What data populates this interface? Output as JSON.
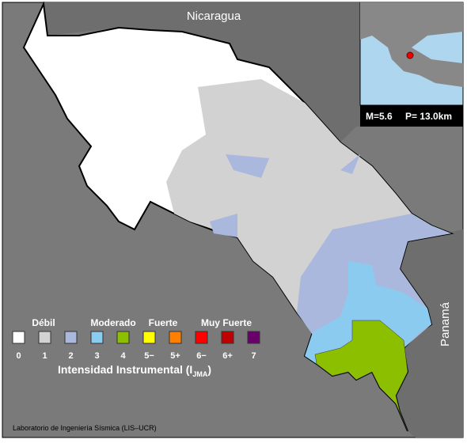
{
  "map": {
    "labels": {
      "north": "Nicaragua",
      "southeast": "Panamá"
    },
    "inset": {
      "magnitude": "M=5.6",
      "depth": "P= 13.0km"
    },
    "legend": {
      "groups": [
        "Débil",
        "Moderado",
        "Fuerte",
        "Muy Fuerte"
      ],
      "items": [
        {
          "label": "0",
          "color": "#ffffff"
        },
        {
          "label": "1",
          "color": "#d2d2d2"
        },
        {
          "label": "2",
          "color": "#a9b8dc"
        },
        {
          "label": "3",
          "color": "#8ccbf0"
        },
        {
          "label": "4",
          "color": "#8bbf00"
        },
        {
          "label": "5−",
          "color": "#ffff00"
        },
        {
          "label": "5+",
          "color": "#ff8000"
        },
        {
          "label": "6−",
          "color": "#ff0000"
        },
        {
          "label": "6+",
          "color": "#c00000"
        },
        {
          "label": "7",
          "color": "#6a006a"
        }
      ],
      "title": {
        "text": "Intensidad Instrumental (I",
        "sub": "JMA",
        "end": ")"
      }
    },
    "credit": "Laboratorio de Ingeniería Sísmica (LIS–UCR)"
  }
}
